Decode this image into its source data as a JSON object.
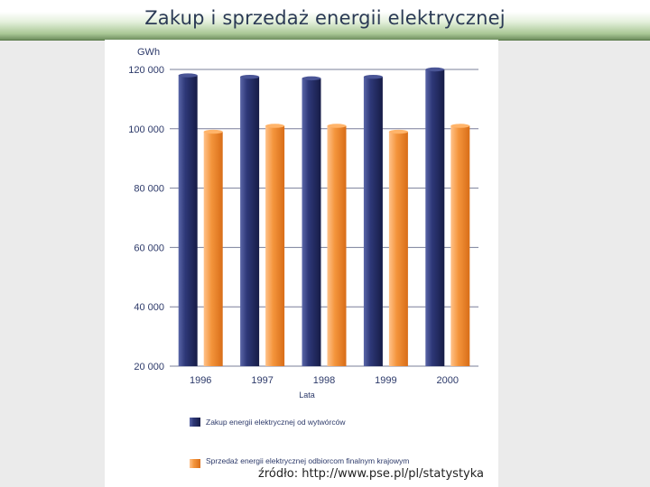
{
  "slide": {
    "title": "Zakup i sprzedaż energii elektrycznej",
    "source": "źródło: http://www.pse.pl/pl/statystyka"
  },
  "chart_data": {
    "type": "bar",
    "title": "",
    "unit_label": "GWh",
    "xlabel": "Lata",
    "categories": [
      "1996",
      "1997",
      "1998",
      "1999",
      "2000"
    ],
    "y_ticks": [
      "20 000",
      "40 000",
      "60 000",
      "80 000",
      "100 000",
      "120 000"
    ],
    "ylim": [
      20000,
      120000
    ],
    "grid": true,
    "legend_position": "bottom",
    "series": [
      {
        "name": "Zakup energii elektrycznej od wytwórców",
        "color": "#2a3470",
        "values": [
          118000,
          117500,
          117000,
          117500,
          120000
        ]
      },
      {
        "name": "Sprzedaż energii elektrycznej odbiorcom finalnym krajowym",
        "color": "#f08c32",
        "values": [
          99000,
          101000,
          101000,
          99000,
          101000
        ]
      }
    ]
  }
}
